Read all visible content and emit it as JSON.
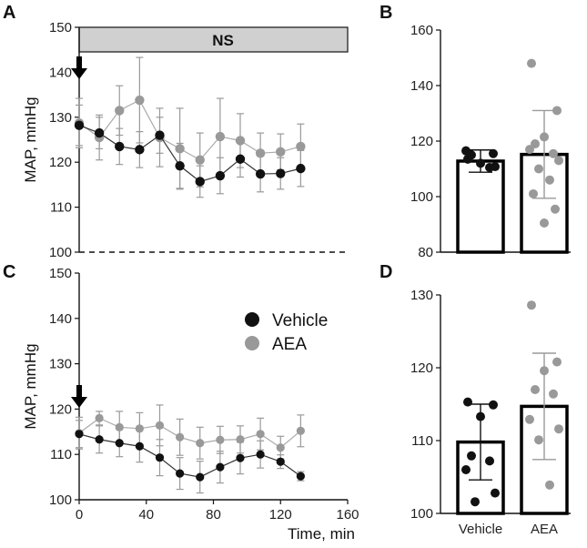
{
  "colors": {
    "vehicle": "#111111",
    "aea": "#999999",
    "ns_fill": "#d0d0d0",
    "error": "#9a9a9a"
  },
  "panels": {
    "a": "A",
    "b": "B",
    "c": "C",
    "d": "D"
  },
  "legend": {
    "vehicle": "Vehicle",
    "aea": "AEA"
  },
  "ns_label": "NS",
  "chart_data": [
    {
      "panel": "A",
      "type": "line",
      "ylabel": "MAP, mmHg",
      "xlim": [
        0,
        160
      ],
      "ylim": [
        100,
        150
      ],
      "yticks": [
        100,
        110,
        120,
        130,
        140,
        150
      ],
      "x": [
        0,
        12,
        24,
        36,
        48,
        60,
        72,
        84,
        96,
        108,
        120,
        132
      ],
      "series": [
        {
          "name": "Vehicle",
          "values": [
            128.2,
            126.5,
            123.5,
            122.8,
            126.0,
            119.2,
            115.7,
            117.0,
            120.7,
            117.4,
            117.5,
            118.6
          ],
          "errors": [
            4.5,
            3.5,
            4.0,
            4.0,
            4.0,
            5.0,
            3.5,
            4.0,
            4.0,
            4.0,
            3.5,
            4.0
          ]
        },
        {
          "name": "AEA",
          "values": [
            128.7,
            125.5,
            131.5,
            133.8,
            125.5,
            123.0,
            120.5,
            125.7,
            124.8,
            122.0,
            122.3,
            123.5
          ],
          "errors": [
            5.5,
            5.0,
            5.5,
            9.5,
            6.5,
            9.0,
            6.0,
            8.5,
            6.0,
            4.5,
            4.0,
            5.0
          ]
        }
      ],
      "annotations": [
        "NS",
        "arrow at 0 min",
        "dashed line at 100 mmHg"
      ]
    },
    {
      "panel": "B",
      "type": "bar",
      "categories": [
        "Vehicle",
        "AEA"
      ],
      "values": [
        112.8,
        115.2
      ],
      "errors": [
        4.0,
        15.8
      ],
      "ylim": [
        80,
        160
      ],
      "yticks": [
        80,
        100,
        120,
        140,
        160
      ],
      "points": [
        [
          113.5,
          115.5,
          112,
          115,
          110.5,
          116.5,
          110.8
        ],
        [
          148,
          131,
          121.5,
          119,
          115.5,
          117,
          113,
          110,
          106,
          101,
          95.5,
          90.5
        ]
      ]
    },
    {
      "panel": "C",
      "type": "line",
      "ylabel": "MAP, mmHg",
      "xlabel": "Time, min",
      "xlim": [
        0,
        160
      ],
      "ylim": [
        100,
        150
      ],
      "xticks": [
        0,
        40,
        80,
        120,
        160
      ],
      "yticks": [
        100,
        110,
        120,
        130,
        140,
        150
      ],
      "x": [
        0,
        12,
        24,
        36,
        48,
        60,
        72,
        84,
        96,
        108,
        120,
        132
      ],
      "series": [
        {
          "name": "Vehicle",
          "values": [
            114.5,
            113.3,
            112.5,
            111.8,
            109.3,
            105.8,
            105.0,
            107.2,
            109.2,
            110.0,
            108.4,
            105.2
          ],
          "errors": [
            3.0,
            3.0,
            3.0,
            3.5,
            4.0,
            3.5,
            3.5,
            3.5,
            3.5,
            3.0,
            1.5,
            1.0
          ]
        },
        {
          "name": "AEA",
          "values": [
            114.7,
            118.0,
            116.0,
            115.7,
            116.4,
            113.8,
            112.5,
            113.2,
            113.3,
            114.5,
            111.5,
            115.2
          ],
          "errors": [
            3.5,
            1.5,
            3.5,
            3.5,
            4.5,
            4.0,
            3.5,
            3.0,
            3.0,
            3.5,
            2.5,
            3.5
          ]
        }
      ],
      "annotations": [
        "arrow at 0 min"
      ]
    },
    {
      "panel": "D",
      "type": "bar",
      "categories": [
        "Vehicle",
        "AEA"
      ],
      "values": [
        109.8,
        114.7
      ],
      "errors": [
        5.2,
        7.3
      ],
      "ylim": [
        100,
        130
      ],
      "yticks": [
        100,
        110,
        120,
        130
      ],
      "points": [
        [
          115.3,
          114.9,
          113.3,
          107.9,
          107.2,
          106.0,
          102.8,
          101.6
        ],
        [
          128.6,
          120.8,
          119.6,
          117.0,
          116.4,
          112.9,
          111.6,
          110.1,
          103.9
        ]
      ]
    }
  ]
}
